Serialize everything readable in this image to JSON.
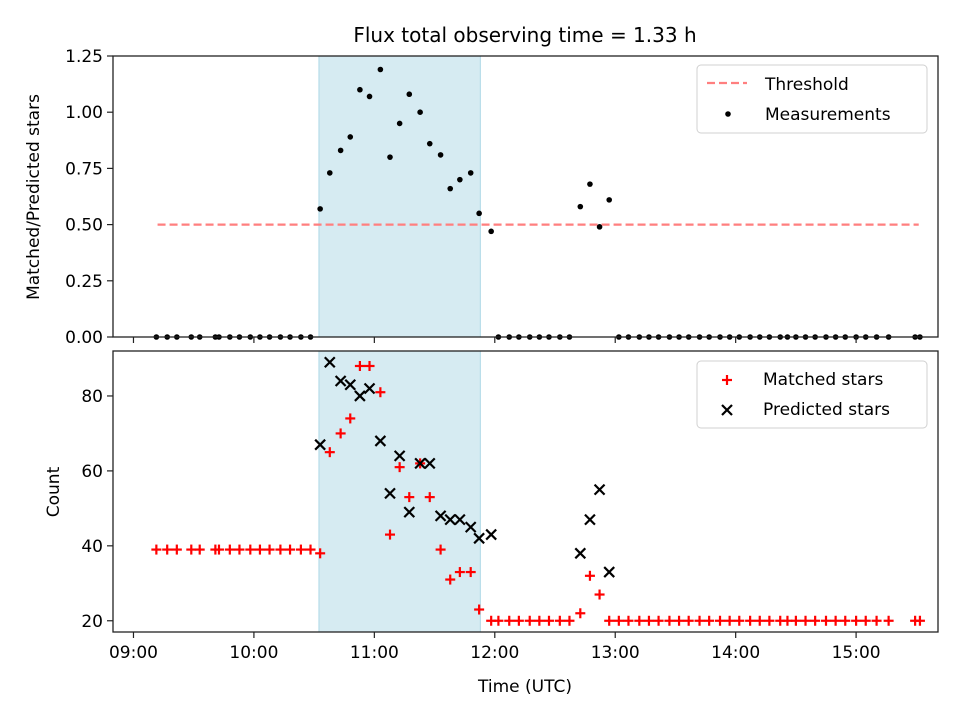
{
  "chart_data": [
    {
      "type": "scatter",
      "title": "Flux total observing time = 1.33 h",
      "xlabel": "",
      "ylabel": "Matched/Predicted stars",
      "xlim_hours": [
        8.83,
        15.68
      ],
      "ylim": [
        0,
        1.25
      ],
      "yticks": [
        0,
        0.25,
        0.5,
        0.75,
        1.0,
        1.25
      ],
      "ytick_labels": [
        "0.00",
        "0.25",
        "0.50",
        "0.75",
        "1.00",
        "1.25"
      ],
      "xticks_hours": [
        9,
        10,
        11,
        12,
        13,
        14,
        15
      ],
      "shaded_region_hours": [
        10.54,
        11.88
      ],
      "shade_color": "#add8e6",
      "threshold": {
        "label": "Threshold",
        "value": 0.5,
        "x_range_hours": [
          9.2,
          15.52
        ],
        "color": "#ff7f7f"
      },
      "legend": {
        "placement": "upper-right",
        "entries": [
          "Threshold",
          "Measurements"
        ]
      },
      "series": [
        {
          "name": "Measurements",
          "marker": "dot",
          "color": "#000000",
          "x_hours": [
            9.19,
            9.28,
            9.36,
            9.48,
            9.55,
            9.68,
            9.71,
            9.8,
            9.88,
            9.97,
            10.05,
            10.13,
            10.22,
            10.3,
            10.39,
            10.47,
            10.55,
            10.63,
            10.72,
            10.8,
            10.88,
            10.96,
            11.05,
            11.13,
            11.21,
            11.29,
            11.38,
            11.46,
            11.55,
            11.63,
            11.71,
            11.8,
            11.87,
            11.97,
            12.03,
            12.12,
            12.2,
            12.29,
            12.37,
            12.45,
            12.54,
            12.62,
            12.71,
            12.79,
            12.87,
            12.95,
            13.03,
            13.11,
            13.2,
            13.28,
            13.36,
            13.45,
            13.53,
            13.61,
            13.7,
            13.78,
            13.87,
            13.95,
            14.03,
            14.12,
            14.2,
            14.28,
            14.37,
            14.43,
            14.5,
            14.58,
            14.66,
            14.75,
            14.83,
            14.91,
            15.0,
            15.08,
            15.17,
            15.27,
            15.49,
            15.53
          ],
          "y": [
            0,
            0,
            0,
            0,
            0,
            0,
            0,
            0,
            0,
            0,
            0,
            0,
            0,
            0,
            0,
            0,
            0.57,
            0.73,
            0.83,
            0.89,
            1.1,
            1.07,
            1.19,
            0.8,
            0.95,
            1.08,
            1.0,
            0.86,
            0.81,
            0.66,
            0.7,
            0.73,
            0.55,
            0.47,
            0,
            0,
            0,
            0,
            0,
            0,
            0,
            0,
            0.58,
            0.68,
            0.49,
            0.61,
            0,
            0,
            0,
            0,
            0,
            0,
            0,
            0,
            0,
            0,
            0,
            0,
            0,
            0,
            0,
            0,
            0,
            0,
            0,
            0,
            0,
            0,
            0,
            0,
            0,
            0,
            0,
            0,
            0,
            0
          ]
        }
      ]
    },
    {
      "type": "scatter",
      "title": "",
      "xlabel": "Time (UTC)",
      "ylabel": "Count",
      "xlim_hours": [
        8.83,
        15.68
      ],
      "ylim": [
        17,
        92
      ],
      "yticks": [
        20,
        40,
        60,
        80
      ],
      "ytick_labels": [
        "20",
        "40",
        "60",
        "80"
      ],
      "xticks_hours": [
        9,
        10,
        11,
        12,
        13,
        14,
        15
      ],
      "xtick_labels": [
        "09:00",
        "10:00",
        "11:00",
        "12:00",
        "13:00",
        "14:00",
        "15:00"
      ],
      "shaded_region_hours": [
        10.54,
        11.88
      ],
      "shade_color": "#add8e6",
      "legend": {
        "placement": "upper-right",
        "entries": [
          "Matched stars",
          "Predicted stars"
        ]
      },
      "series": [
        {
          "name": "Matched stars",
          "marker": "plus",
          "color": "#ff0000",
          "x_hours": [
            9.19,
            9.28,
            9.36,
            9.48,
            9.55,
            9.68,
            9.71,
            9.8,
            9.88,
            9.97,
            10.05,
            10.13,
            10.22,
            10.3,
            10.39,
            10.47,
            10.55,
            10.63,
            10.72,
            10.8,
            10.88,
            10.96,
            11.05,
            11.13,
            11.21,
            11.29,
            11.38,
            11.46,
            11.55,
            11.63,
            11.71,
            11.8,
            11.87,
            11.97,
            12.03,
            12.12,
            12.2,
            12.29,
            12.37,
            12.45,
            12.54,
            12.62,
            12.71,
            12.79,
            12.87,
            12.95,
            13.03,
            13.11,
            13.2,
            13.28,
            13.36,
            13.45,
            13.53,
            13.61,
            13.7,
            13.78,
            13.87,
            13.95,
            14.03,
            14.12,
            14.2,
            14.28,
            14.37,
            14.43,
            14.5,
            14.58,
            14.66,
            14.75,
            14.83,
            14.91,
            15.0,
            15.08,
            15.17,
            15.27,
            15.49,
            15.53
          ],
          "y": [
            39,
            39,
            39,
            39,
            39,
            39,
            39,
            39,
            39,
            39,
            39,
            39,
            39,
            39,
            39,
            39,
            38,
            65,
            70,
            74,
            88,
            88,
            81,
            43,
            61,
            53,
            62,
            53,
            39,
            31,
            33,
            33,
            23,
            20,
            20,
            20,
            20,
            20,
            20,
            20,
            20,
            20,
            22,
            32,
            27,
            20,
            20,
            20,
            20,
            20,
            20,
            20,
            20,
            20,
            20,
            20,
            20,
            20,
            20,
            20,
            20,
            20,
            20,
            20,
            20,
            20,
            20,
            20,
            20,
            20,
            20,
            20,
            20,
            20,
            20,
            20
          ]
        },
        {
          "name": "Predicted stars",
          "marker": "x",
          "color": "#000000",
          "x_hours": [
            10.55,
            10.63,
            10.72,
            10.8,
            10.88,
            10.96,
            11.05,
            11.13,
            11.21,
            11.29,
            11.38,
            11.46,
            11.55,
            11.63,
            11.71,
            11.8,
            11.87,
            11.97,
            12.71,
            12.79,
            12.87,
            12.95
          ],
          "y": [
            67,
            89,
            84,
            83,
            80,
            82,
            68,
            54,
            64,
            49,
            62,
            62,
            48,
            47,
            47,
            45,
            42,
            43,
            38,
            47,
            55,
            33
          ]
        }
      ]
    }
  ]
}
